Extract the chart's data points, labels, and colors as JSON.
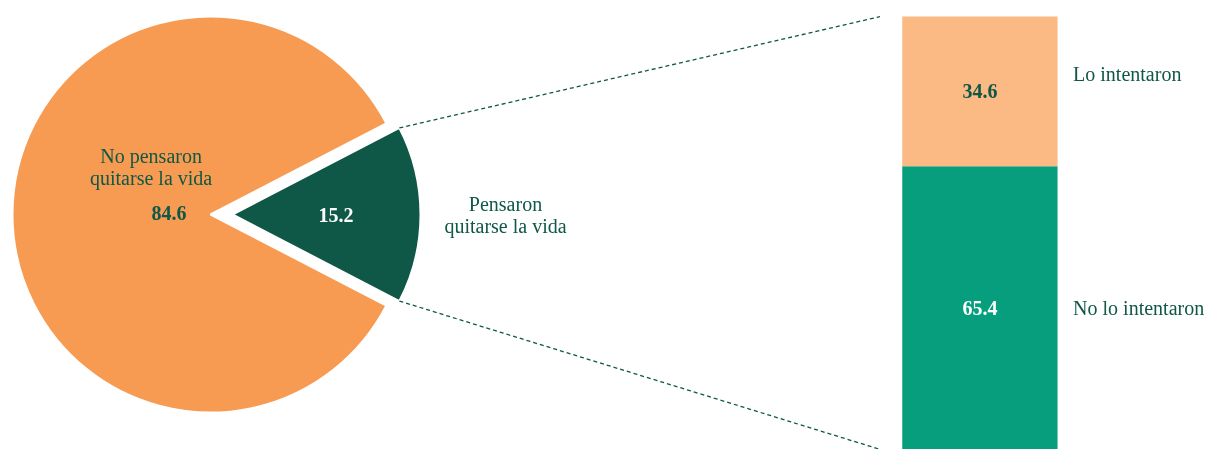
{
  "chart_data": [
    {
      "type": "pie",
      "categories": [
        "No pensaron\nquitarse la vida",
        "Pensaron\nquitarse la vida"
      ],
      "values": [
        84.6,
        15.2
      ],
      "colors": [
        "#f79b53",
        "#0f5746"
      ],
      "data_labels": true
    },
    {
      "type": "bar",
      "stacked": true,
      "categories": [
        null
      ],
      "data_labels": true,
      "series": [
        {
          "name": "No lo intentaron",
          "color": "#079e7e",
          "values": [
            65.4
          ]
        },
        {
          "name": "Lo intentaron",
          "color": "#fbb984",
          "values": [
            34.6
          ]
        }
      ]
    }
  ]
}
